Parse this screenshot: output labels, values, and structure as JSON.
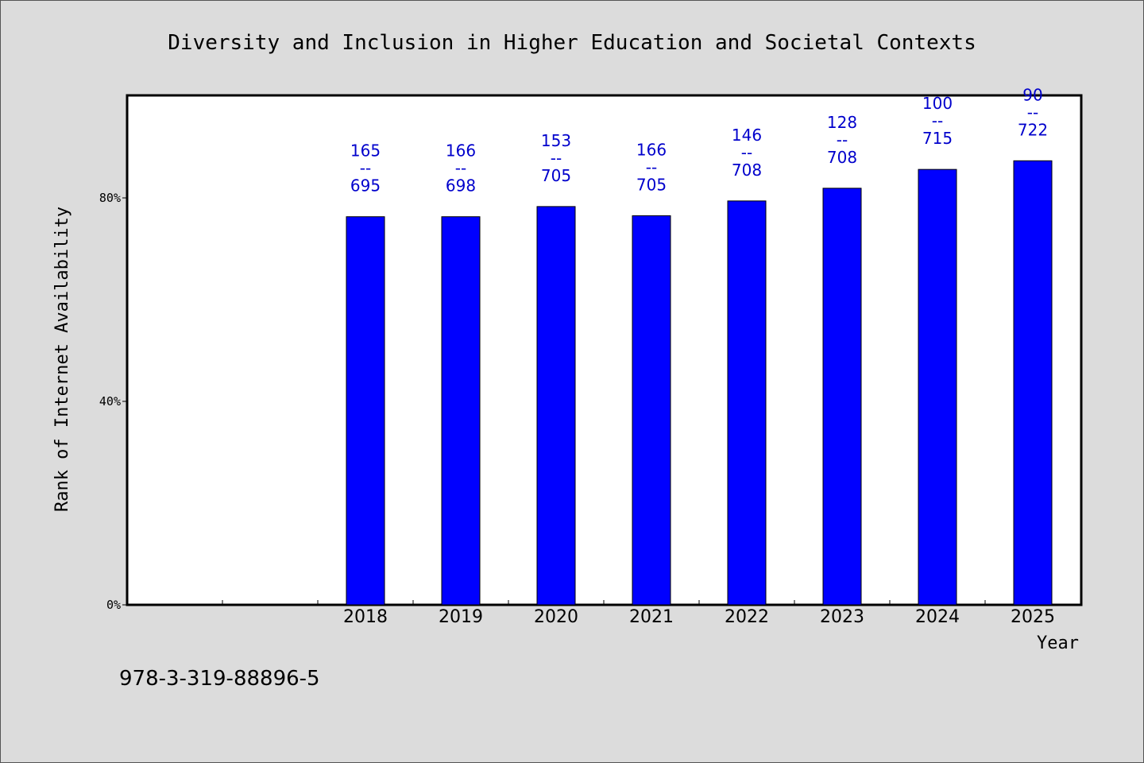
{
  "chart_data": {
    "type": "bar",
    "title": "Diversity and Inclusion in Higher Education and Societal Contexts",
    "xlabel": "Year",
    "ylabel": "Rank of Internet Availability",
    "categories": [
      "2018",
      "2019",
      "2020",
      "2021",
      "2022",
      "2023",
      "2024",
      "2025"
    ],
    "values": [
      76.3,
      76.3,
      78.3,
      76.5,
      79.4,
      81.9,
      85.6,
      87.3
    ],
    "bar_labels": [
      {
        "top": "165",
        "sep": "--",
        "bottom": "695"
      },
      {
        "top": "166",
        "sep": "--",
        "bottom": "698"
      },
      {
        "top": "153",
        "sep": "--",
        "bottom": "705"
      },
      {
        "top": "166",
        "sep": "--",
        "bottom": "705"
      },
      {
        "top": "146",
        "sep": "--",
        "bottom": "708"
      },
      {
        "top": "128",
        "sep": "--",
        "bottom": "708"
      },
      {
        "top": "100",
        "sep": "--",
        "bottom": "715"
      },
      {
        "top": "90",
        "sep": "--",
        "bottom": "722"
      }
    ],
    "yticks": [
      0,
      40,
      80
    ],
    "ytick_labels": [
      "0%",
      "40%",
      "80%"
    ],
    "ylim": [
      0,
      100
    ],
    "grid": false,
    "bar_color": "#0000ff",
    "label_color": "#0000cc"
  },
  "footer": {
    "isbn": "978-3-319-88896-5"
  }
}
